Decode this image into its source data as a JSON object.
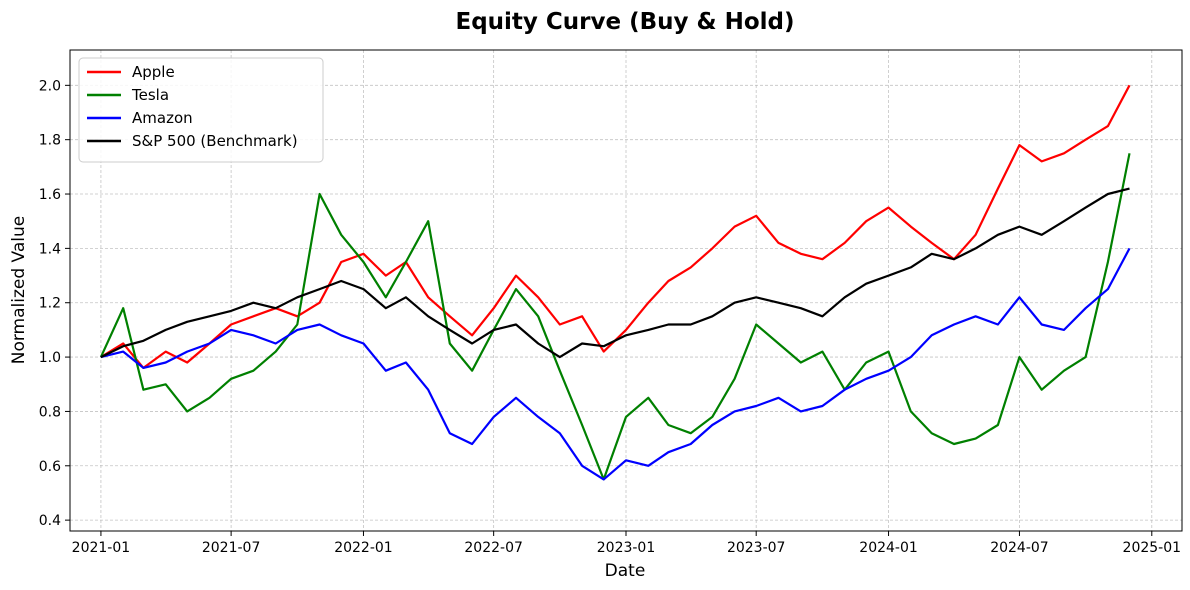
{
  "chart_data": {
    "type": "line",
    "title": "Equity Curve (Buy & Hold)",
    "xlabel": "Date",
    "ylabel": "Normalized Value",
    "x_ticks": [
      "2021-01",
      "2021-07",
      "2022-01",
      "2022-07",
      "2023-01",
      "2023-07",
      "2024-01",
      "2024-07",
      "2025-01"
    ],
    "y_ticks": [
      "0.4",
      "0.6",
      "0.8",
      "1.0",
      "1.2",
      "1.4",
      "1.6",
      "1.8",
      "2.0"
    ],
    "xlim": [
      "2020-11-19",
      "2025-02-12"
    ],
    "ylim": [
      0.36,
      2.13
    ],
    "grid": true,
    "legend_position": "top-left",
    "x": [
      "2021-01",
      "2021-02",
      "2021-03",
      "2021-04",
      "2021-05",
      "2021-06",
      "2021-07",
      "2021-08",
      "2021-09",
      "2021-10",
      "2021-11",
      "2021-12",
      "2022-01",
      "2022-02",
      "2022-03",
      "2022-04",
      "2022-05",
      "2022-06",
      "2022-07",
      "2022-08",
      "2022-09",
      "2022-10",
      "2022-11",
      "2022-12",
      "2023-01",
      "2023-02",
      "2023-03",
      "2023-04",
      "2023-05",
      "2023-06",
      "2023-07",
      "2023-08",
      "2023-09",
      "2023-10",
      "2023-11",
      "2023-12",
      "2024-01",
      "2024-02",
      "2024-03",
      "2024-04",
      "2024-05",
      "2024-06",
      "2024-07",
      "2024-08",
      "2024-09",
      "2024-10",
      "2024-11",
      "2024-12"
    ],
    "series": [
      {
        "name": "Apple",
        "color": "#ff0000",
        "values": [
          1.0,
          1.05,
          0.96,
          1.02,
          0.98,
          1.05,
          1.12,
          1.15,
          1.18,
          1.15,
          1.2,
          1.35,
          1.38,
          1.3,
          1.35,
          1.22,
          1.15,
          1.08,
          1.18,
          1.3,
          1.22,
          1.12,
          1.15,
          1.02,
          1.1,
          1.2,
          1.28,
          1.33,
          1.4,
          1.48,
          1.52,
          1.42,
          1.38,
          1.36,
          1.42,
          1.5,
          1.55,
          1.48,
          1.42,
          1.36,
          1.45,
          1.62,
          1.78,
          1.72,
          1.75,
          1.8,
          1.85,
          2.0
        ]
      },
      {
        "name": "Tesla",
        "color": "#008000",
        "values": [
          1.0,
          1.18,
          0.88,
          0.9,
          0.8,
          0.85,
          0.92,
          0.95,
          1.02,
          1.12,
          1.6,
          1.45,
          1.35,
          1.22,
          1.35,
          1.5,
          1.05,
          0.95,
          1.1,
          1.25,
          1.15,
          0.95,
          0.75,
          0.55,
          0.78,
          0.85,
          0.75,
          0.72,
          0.78,
          0.92,
          1.12,
          1.05,
          0.98,
          1.02,
          0.88,
          0.98,
          1.02,
          0.8,
          0.72,
          0.68,
          0.7,
          0.75,
          1.0,
          0.88,
          0.95,
          1.0,
          1.35,
          1.75
        ]
      },
      {
        "name": "Amazon",
        "color": "#0000ff",
        "values": [
          1.0,
          1.02,
          0.96,
          0.98,
          1.02,
          1.05,
          1.1,
          1.08,
          1.05,
          1.1,
          1.12,
          1.08,
          1.05,
          0.95,
          0.98,
          0.88,
          0.72,
          0.68,
          0.78,
          0.85,
          0.78,
          0.72,
          0.6,
          0.55,
          0.62,
          0.6,
          0.65,
          0.68,
          0.75,
          0.8,
          0.82,
          0.85,
          0.8,
          0.82,
          0.88,
          0.92,
          0.95,
          1.0,
          1.08,
          1.12,
          1.15,
          1.12,
          1.22,
          1.12,
          1.1,
          1.18,
          1.25,
          1.4
        ]
      },
      {
        "name": "S&P 500 (Benchmark)",
        "color": "#000000",
        "values": [
          1.0,
          1.04,
          1.06,
          1.1,
          1.13,
          1.15,
          1.17,
          1.2,
          1.18,
          1.22,
          1.25,
          1.28,
          1.25,
          1.18,
          1.22,
          1.15,
          1.1,
          1.05,
          1.1,
          1.12,
          1.05,
          1.0,
          1.05,
          1.04,
          1.08,
          1.1,
          1.12,
          1.12,
          1.15,
          1.2,
          1.22,
          1.2,
          1.18,
          1.15,
          1.22,
          1.27,
          1.3,
          1.33,
          1.38,
          1.36,
          1.4,
          1.45,
          1.48,
          1.45,
          1.5,
          1.55,
          1.6,
          1.62
        ]
      }
    ]
  }
}
